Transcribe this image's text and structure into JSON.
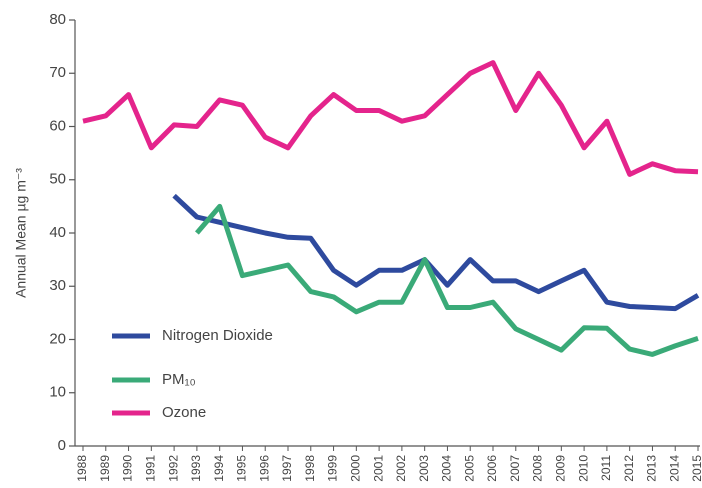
{
  "chart_data": {
    "type": "line",
    "y_label": "Annual Mean µg m⁻³",
    "categories": [
      "1988",
      "1989",
      "1990",
      "1991",
      "1992",
      "1993",
      "1994",
      "1995",
      "1996",
      "1997",
      "1998",
      "1999",
      "2000",
      "2001",
      "2002",
      "2003",
      "2004",
      "2005",
      "2006",
      "2007",
      "2008",
      "2009",
      "2010",
      "2011",
      "2012",
      "2013",
      "2014",
      "2015"
    ],
    "series": [
      {
        "name": "Nitrogen Dioxide",
        "color": "#2e4a9e",
        "values": [
          null,
          null,
          null,
          null,
          47,
          43,
          42,
          41,
          40,
          39.2,
          39,
          33,
          30.2,
          33,
          33,
          35,
          30.2,
          35,
          31,
          31,
          29,
          31,
          33,
          27,
          26.2,
          26,
          25.8,
          28.3
        ]
      },
      {
        "name": "PM₁₀",
        "color": "#3aaa78",
        "values": [
          null,
          null,
          null,
          null,
          null,
          40,
          45,
          32,
          33,
          34,
          29,
          28,
          25.2,
          27,
          27,
          35,
          26,
          26,
          27,
          22,
          20,
          18,
          22.2,
          22.1,
          18.2,
          17.2,
          18.8,
          20.2
        ]
      },
      {
        "name": "Ozone",
        "color": "#e4248c",
        "values": [
          61,
          62,
          66,
          56,
          60.3,
          60,
          65,
          64,
          58,
          56,
          62,
          66,
          63,
          63,
          61,
          62,
          66,
          70,
          72,
          63,
          70,
          64,
          56,
          61,
          51,
          53,
          51.7,
          51.5
        ]
      }
    ],
    "ylim": [
      0,
      80
    ],
    "yticks": [
      0,
      10,
      20,
      30,
      40,
      50,
      60,
      70,
      80
    ],
    "legend": "lower-left"
  }
}
